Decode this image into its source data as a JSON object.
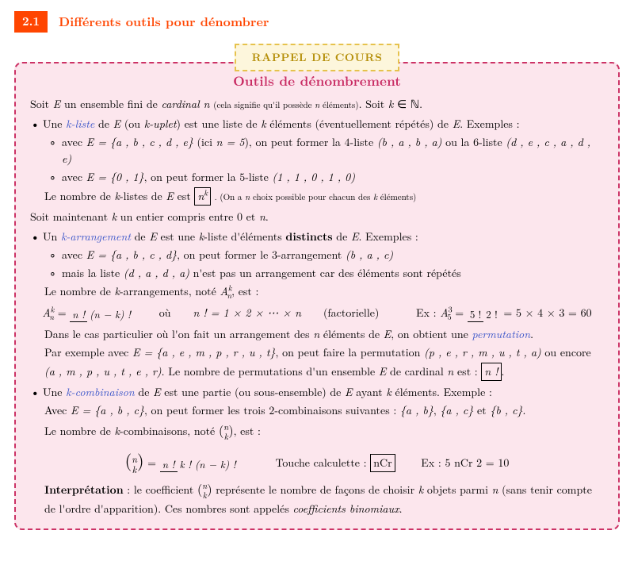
{
  "section": {
    "number": "2.1",
    "title": "Différents outils pour dénombrer"
  },
  "ribbon": "RAPPEL DE COURS",
  "box": {
    "title": "Outils de dénombrement",
    "l1a": "Soit ",
    "l1b": " un ensemble fini de ",
    "l1c": "cardinal n",
    "l1d": " (cela signifie qu'il possède ",
    "l1e": " éléments)",
    "l1f": ". Soit ",
    "kliste": "k-liste",
    "kuplet": "k-uplet",
    "b1a": "Une ",
    "b1b": " de ",
    "b1c": " (ou ",
    "b1d": ") est une liste de ",
    "b1e": " éléments (éventuellement répétés) de ",
    "b1f": ". Exemples :",
    "s1a": "avec ",
    "ex1set": "E = {a , b , c , d , e}",
    "s1b": " (ici ",
    "s1c": "), on peut former la 4-liste ",
    "ex1l4": "(b , a , b , a)",
    "s1d": " ou la 6-liste ",
    "ex1l6": "(d , e , c , a , d , e)",
    "s2a": "avec ",
    "ex2set": "E = {0 , 1}",
    "s2b": ", on peut former la 5-liste ",
    "ex2l5": "(1 , 1 , 0 , 1 , 0)",
    "nkliste_a": "Le nombre de ",
    "nkliste_b": "-listes de ",
    "nkliste_c": " est ",
    "nk": "n",
    "nk_exp": "k",
    "nkliste_note": ". (On a ",
    "nkliste_note2": " choix possible pour chacun des ",
    "nkliste_note3": " éléments)",
    "l2a": "Soit maintenant ",
    "l2b": " un entier compris entre 0 et ",
    "karr": "k-arrangement",
    "b2a": "Un ",
    "b2b": " de ",
    "b2c": " est une ",
    "b2d": "-liste d'éléments ",
    "distincts": "distincts",
    "b2e": " de ",
    "b2f": ". Exemples :",
    "s3a": "avec ",
    "ex3set": "E = {a , b , c , d}",
    "s3b": ", on peut former le 3-arrangement ",
    "ex3arr": "(b , a , c)",
    "s4a": "mais la liste ",
    "ex4l": "(d , a , d , a)",
    "s4b": " n'est pas un arrangement car des éléments sont répétés",
    "narr_a": "Le nombre de ",
    "narr_b": "-arrangements, noté ",
    "narr_c": ", est :",
    "Ank": "A",
    "arr_num": "n !",
    "arr_den": "(n − k) !",
    "ou": "où",
    "fact_def": "n ! = 1 × 2 × ⋯ × n",
    "factorielle": "(factorielle)",
    "ex_lbl": "Ex : ",
    "A53": "A",
    "A53_num": "5 !",
    "A53_den": "2 !",
    "A53_res": " = 5 × 4 × 3 = 60",
    "p1a": "Dans le cas particulier où l'on fait un arrangement des ",
    "p1b": " éléments de ",
    "p1c": ", on obtient une ",
    "perm": "permutation",
    "p1d": ".",
    "p2a": "Par exemple avec ",
    "p2set": "E = {a , e , m , p , r , u , t}",
    "p2b": ", on peut faire la permutation ",
    "p2perm1": "(p , e , r , m , u , t , a)",
    "p2c": " ou encore ",
    "p3perm2": "(a , m , p , u , t , e , r)",
    "p3a": ". Le nombre de permutations d'un ensemble ",
    "p3b": " de cardinal ",
    "p3c": " est : ",
    "nfact": "n !",
    "p3d": ".",
    "kcomb": "k-combinaison",
    "b3a": "Une ",
    "b3b": " de ",
    "b3c": " est une partie (ou sous-ensemble) de ",
    "b3d": " ayant ",
    "b3e": " éléments. Exemple :",
    "c1a": "Avec ",
    "c1set": "E = {a , b , c}",
    "c1b": ", on peut former les trois 2-combinaisons suivantes : ",
    "c1c1": "{a , b}",
    "c1c2": "{a , c}",
    "c1s": ", ",
    "c1et": " et ",
    "c1c3": "{b , c}",
    "c1d": ".",
    "ncomb_a": "Le nombre de ",
    "ncomb_b": "-combinaisons, noté ",
    "ncomb_c": ", est :",
    "binom_n": "n",
    "binom_k": "k",
    "comb_num": "n !",
    "comb_den": "k ! (n − k) !",
    "touche": "Touche calculette : ",
    "nCr": "nCr",
    "excomb": "Ex : 5 nCr 2 = 10",
    "interp_lbl": "Interprétation",
    "interp_a": " : le coefficient ",
    "interp_b": " représente le nombre de façons de choisir ",
    "interp_c": " objets parmi ",
    "interp_d": " (sans tenir compte de l'ordre d'apparition). Ces nombres sont appelés ",
    "coefbin": "coefficients binomiaux",
    "interp_e": "."
  }
}
